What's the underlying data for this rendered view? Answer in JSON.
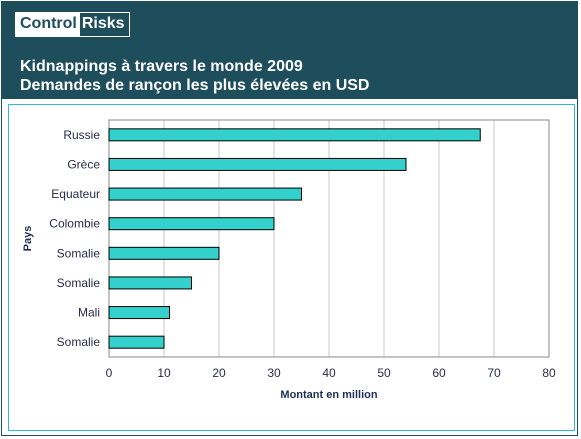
{
  "logo": {
    "part1": "Control",
    "part2": "Risks"
  },
  "header": {
    "title_line1": "Kidnappings à travers le monde 2009",
    "title_line2": "Demandes de rançon les plus élevées en USD"
  },
  "chart_data": {
    "type": "bar",
    "orientation": "horizontal",
    "categories": [
      "Russie",
      "Grèce",
      "Equateur",
      "Colombie",
      "Somalie",
      "Somalie",
      "Mali",
      "Somalie"
    ],
    "values": [
      67.5,
      54,
      35,
      30,
      20,
      15,
      11,
      10
    ],
    "xlabel": "Montant en million",
    "ylabel": "Pays",
    "xlim": [
      0,
      80
    ],
    "xticks": [
      0,
      10,
      20,
      30,
      40,
      50,
      60,
      70,
      80
    ],
    "grid": "vertical",
    "bar_color": "#33d0cc",
    "bar_edge_color": "#000000"
  }
}
